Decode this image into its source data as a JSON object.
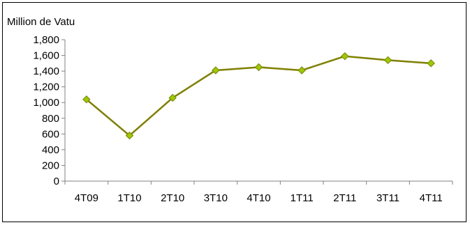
{
  "chart_data": {
    "type": "line",
    "title": "",
    "xlabel": "",
    "ylabel": "Million de Vatu",
    "categories": [
      "4T09",
      "1T10",
      "2T10",
      "3T10",
      "4T10",
      "1T11",
      "2T11",
      "3T11",
      "4T11"
    ],
    "series": [
      {
        "values": [
          1040,
          580,
          1060,
          1410,
          1450,
          1410,
          1590,
          1540,
          1500
        ],
        "color": "#7f7f00",
        "marker_color": "#99cc00",
        "marker": "diamond"
      }
    ],
    "ylim": [
      0,
      1800
    ],
    "yticks": [
      0,
      200,
      400,
      600,
      800,
      1000,
      1200,
      1400,
      1600,
      1800
    ],
    "ytick_labels": [
      "0",
      "200",
      "400",
      "600",
      "800",
      "1,000",
      "1,200",
      "1,400",
      "1,600",
      "1,800"
    ],
    "grid": false,
    "legend": "none"
  }
}
